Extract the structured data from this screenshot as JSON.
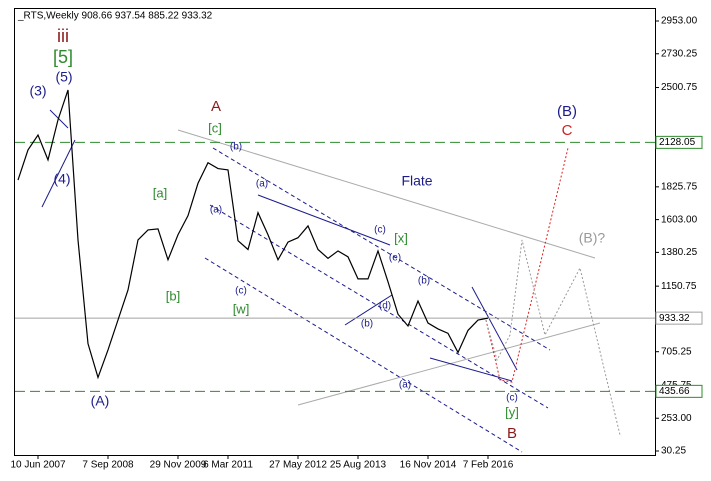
{
  "chart_data": {
    "type": "line",
    "title": "_RTS,Weekly  908.66 937.54 885.22 933.32",
    "color": "#000000",
    "categories": [
      null,
      null,
      "10 Jun 2007",
      null,
      null,
      null,
      null,
      null,
      null,
      "7 Sep 2008",
      null,
      null,
      null,
      null,
      null,
      null,
      "29 Nov 2009",
      null,
      null,
      null,
      null,
      "6 Mar 2011",
      null,
      null,
      null,
      null,
      null,
      null,
      "27 May 2012",
      null,
      null,
      null,
      null,
      null,
      "25 Aug 2013",
      null,
      null,
      null,
      null,
      null,
      null,
      "16 Nov 2014",
      null,
      null,
      null,
      null,
      null,
      "7 Feb 2016"
    ],
    "values": [
      1872,
      2077,
      2178,
      2009,
      2281,
      2484,
      1465,
      760,
      530,
      717,
      921,
      1125,
      1465,
      1533,
      1540,
      1330,
      1500,
      1630,
      1850,
      1990,
      1950,
      1941,
      1460,
      1400,
      1650,
      1500,
      1330,
      1450,
      1480,
      1560,
      1400,
      1340,
      1390,
      1350,
      1200,
      1200,
      1390,
      1180,
      960,
      880,
      1050,
      900,
      860,
      830,
      700,
      850,
      920,
      933.32
    ],
    "ylim": [
      30.25,
      2953
    ],
    "yticks": [
      {
        "value": 2953,
        "label": "2953.00"
      },
      {
        "value": 2730.25,
        "label": "2730.25"
      },
      {
        "value": 2500.75,
        "label": "2500.75"
      },
      {
        "value": 1825.75,
        "label": "1825.75"
      },
      {
        "value": 1603,
        "label": "1603.00"
      },
      {
        "value": 1380.25,
        "label": "1380.25"
      },
      {
        "value": 1150.75,
        "label": "1150.75"
      },
      {
        "value": 705.25,
        "label": "705.25"
      },
      {
        "value": 475.75,
        "label": "475.75"
      },
      {
        "value": 253,
        "label": "253.00"
      },
      {
        "value": 30.25,
        "label": "30.25"
      }
    ],
    "levels": [
      {
        "value": 2128.05,
        "color": "#2e8b2e"
      },
      {
        "value": 933.32,
        "color": "#a0a0a0"
      },
      {
        "value": 435.66,
        "color": "#2e8b2e"
      }
    ],
    "annotations": [
      {
        "text": "iii",
        "color": "#8b1a1a"
      },
      {
        "text": "[5]",
        "color": "#2e8b2e"
      },
      {
        "text": "(5)",
        "color": "#1c1c8c"
      },
      {
        "text": "(3)",
        "color": "#1c1c8c"
      },
      {
        "text": "(4)",
        "color": "#1c1c8c"
      },
      {
        "text": "(A)",
        "color": "#1c1c8c"
      },
      {
        "text": "A",
        "color": "#8b1a1a"
      },
      {
        "text": "[c]",
        "color": "#2e8b2e"
      },
      {
        "text": "(b)",
        "color": "#1c1c8c"
      },
      {
        "text": "[a]",
        "color": "#2e8b2e"
      },
      {
        "text": "(a)",
        "color": "#1c1c8c"
      },
      {
        "text": "(a)",
        "color": "#1c1c8c"
      },
      {
        "text": "[b]",
        "color": "#2e8b2e"
      },
      {
        "text": "(c)",
        "color": "#1c1c8c"
      },
      {
        "text": "[w]",
        "color": "#2e8b2e"
      },
      {
        "text": "Flate",
        "color": "#1c1c8c"
      },
      {
        "text": "(c)",
        "color": "#1c1c8c"
      },
      {
        "text": "[x]",
        "color": "#2e8b2e"
      },
      {
        "text": "(e)",
        "color": "#1c1c8c"
      },
      {
        "text": "(b)",
        "color": "#1c1c8c"
      },
      {
        "text": "(d)",
        "color": "#1c1c8c"
      },
      {
        "text": "(b)",
        "color": "#1c1c8c"
      },
      {
        "text": "(a)",
        "color": "#1c1c8c"
      },
      {
        "text": "(c)",
        "color": "#1c1c8c"
      },
      {
        "text": "[y]",
        "color": "#2e8b2e"
      },
      {
        "text": "B",
        "color": "#8b1a1a"
      },
      {
        "text": "(B)",
        "color": "#1c1c8c"
      },
      {
        "text": "C",
        "color": "#cc2222"
      },
      {
        "text": "(B)?",
        "color": "#999999"
      }
    ]
  }
}
